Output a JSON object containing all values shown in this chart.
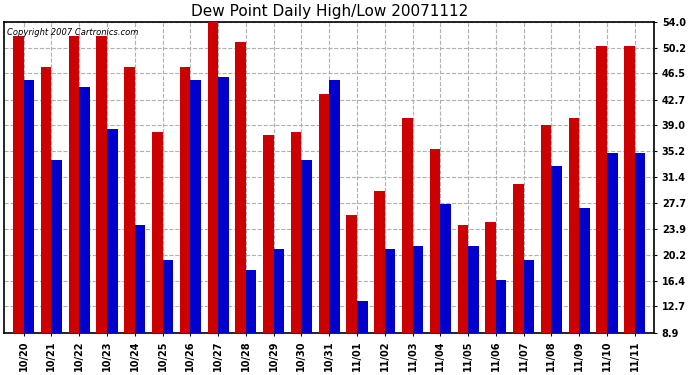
{
  "title": "Dew Point Daily High/Low 20071112",
  "copyright_text": "Copyright 2007 Cartronics.com",
  "categories": [
    "10/20",
    "10/21",
    "10/22",
    "10/23",
    "10/24",
    "10/25",
    "10/26",
    "10/27",
    "10/28",
    "10/29",
    "10/30",
    "10/31",
    "11/01",
    "11/02",
    "11/03",
    "11/04",
    "11/05",
    "11/06",
    "11/07",
    "11/08",
    "11/09",
    "11/10",
    "11/11"
  ],
  "highs": [
    52.0,
    47.5,
    52.0,
    52.0,
    47.5,
    38.0,
    47.5,
    54.0,
    51.0,
    37.5,
    38.0,
    43.5,
    26.0,
    29.5,
    40.0,
    35.5,
    24.5,
    25.0,
    30.5,
    39.0,
    40.0,
    50.5,
    50.5
  ],
  "lows": [
    45.5,
    34.0,
    44.5,
    38.5,
    24.5,
    19.5,
    45.5,
    46.0,
    18.0,
    21.0,
    34.0,
    45.5,
    13.5,
    21.0,
    21.5,
    27.5,
    21.5,
    16.5,
    19.5,
    33.0,
    27.0,
    35.0,
    35.0
  ],
  "high_color": "#cc0000",
  "low_color": "#0000cc",
  "bg_color": "#ffffff",
  "plot_bg_color": "#ffffff",
  "grid_color": "#b0b0b0",
  "yticks": [
    8.9,
    12.7,
    16.4,
    20.2,
    23.9,
    27.7,
    31.4,
    35.2,
    39.0,
    42.7,
    46.5,
    50.2,
    54.0
  ],
  "ymin": 8.9,
  "ymax": 54.0,
  "bar_width": 0.38,
  "title_fontsize": 11,
  "tick_fontsize": 7,
  "copyright_fontsize": 6
}
